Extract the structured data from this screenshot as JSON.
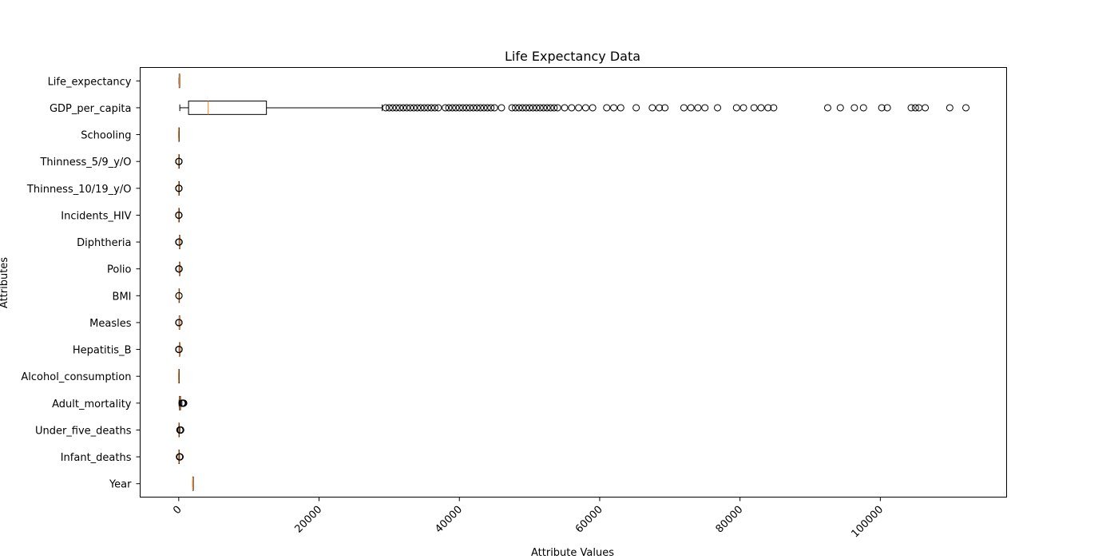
{
  "chart_data": {
    "type": "boxplot",
    "orientation": "horizontal",
    "title": "Life Expectancy Data",
    "xlabel": "Attribute Values",
    "ylabel": "Attributes",
    "xlim": [
      -5500,
      118000
    ],
    "xticks": [
      0,
      20000,
      40000,
      60000,
      80000,
      100000
    ],
    "xtick_labels": [
      "0",
      "20000",
      "40000",
      "60000",
      "80000",
      "100000"
    ],
    "xtick_rotation": 45,
    "grid": false,
    "legend": "none",
    "colors": {
      "box": "#000000",
      "median": "#ff7f0e",
      "flier": "#000000"
    },
    "categories": [
      "Year",
      "Infant_deaths",
      "Under_five_deaths",
      "Adult_mortality",
      "Alcohol_consumption",
      "Hepatitis_B",
      "Measles",
      "BMI",
      "Polio",
      "Diphtheria",
      "Incidents_HIV",
      "Thinness_10/19_y/O",
      "Thinness_5/9_y/O",
      "Schooling",
      "GDP_per_capita",
      "Life_expectancy"
    ],
    "boxes": [
      {
        "name": "Year",
        "whislo": 2000,
        "q1": 2004,
        "med": 2007,
        "q3": 2011,
        "whishi": 2015,
        "fliers": []
      },
      {
        "name": "Infant_deaths",
        "whislo": 2,
        "q1": 8,
        "med": 19,
        "q3": 47,
        "whishi": 105,
        "fliers": [
          110,
          120,
          130,
          140,
          150,
          160,
          170,
          180
        ]
      },
      {
        "name": "Under_five_deaths",
        "whislo": 3,
        "q1": 10,
        "med": 23,
        "q3": 66,
        "whishi": 150,
        "fliers": [
          160,
          180,
          200,
          220,
          240,
          260,
          280
        ]
      },
      {
        "name": "Adult_mortality",
        "whislo": 50,
        "q1": 106,
        "med": 163,
        "q3": 246,
        "whishi": 455,
        "fliers": [
          470,
          500,
          530,
          560,
          590,
          620,
          650,
          680,
          710
        ]
      },
      {
        "name": "Alcohol_consumption",
        "whislo": 0,
        "q1": 1,
        "med": 4,
        "q3": 8,
        "whishi": 17,
        "fliers": []
      },
      {
        "name": "Hepatitis_B",
        "whislo": 50,
        "q1": 78,
        "med": 89,
        "q3": 96,
        "whishi": 99,
        "fliers": [
          12,
          20,
          28,
          36,
          44
        ]
      },
      {
        "name": "Measles",
        "whislo": 50,
        "q1": 64,
        "med": 83,
        "q3": 93,
        "whishi": 99,
        "fliers": [
          10,
          20,
          30,
          40
        ]
      },
      {
        "name": "BMI",
        "whislo": 20,
        "q1": 23,
        "med": 25,
        "q3": 26,
        "whishi": 30,
        "fliers": [
          31,
          32
        ]
      },
      {
        "name": "Polio",
        "whislo": 55,
        "q1": 81,
        "med": 93,
        "q3": 97,
        "whishi": 99,
        "fliers": [
          10,
          20,
          30,
          40,
          50
        ]
      },
      {
        "name": "Diphtheria",
        "whislo": 55,
        "q1": 81,
        "med": 93,
        "q3": 97,
        "whishi": 99,
        "fliers": [
          10,
          20,
          30,
          40,
          50
        ]
      },
      {
        "name": "Incidents_HIV",
        "whislo": 0,
        "q1": 0,
        "med": 0,
        "q3": 1,
        "whishi": 1,
        "fliers": [
          3,
          8,
          15,
          22,
          21
        ]
      },
      {
        "name": "Thinness_10/19_y/O",
        "whislo": 0,
        "q1": 2,
        "med": 3,
        "q3": 7,
        "whishi": 15,
        "fliers": [
          16,
          18,
          20,
          24,
          27
        ]
      },
      {
        "name": "Thinness_5/9_y/O",
        "whislo": 0,
        "q1": 2,
        "med": 3,
        "q3": 7,
        "whishi": 15,
        "fliers": [
          16,
          18,
          20,
          24,
          28
        ]
      },
      {
        "name": "Schooling",
        "whislo": 1,
        "q1": 5,
        "med": 8,
        "q3": 10,
        "whishi": 14,
        "fliers": []
      },
      {
        "name": "GDP_per_capita",
        "whislo": 150,
        "q1": 1400,
        "med": 4200,
        "q3": 12500,
        "whishi": 29000,
        "fliers": [
          29500,
          30000,
          30500,
          31000,
          31500,
          32000,
          32500,
          33000,
          33500,
          34000,
          34500,
          35000,
          35500,
          36000,
          36500,
          37000,
          38000,
          38500,
          39000,
          39500,
          40000,
          40500,
          41000,
          41500,
          42000,
          42500,
          43000,
          43500,
          44000,
          44500,
          45000,
          46000,
          47500,
          48000,
          48500,
          49000,
          49500,
          50000,
          50500,
          51000,
          51500,
          52000,
          52500,
          53000,
          53500,
          54000,
          55000,
          56000,
          57000,
          58000,
          59000,
          61000,
          62000,
          63000,
          65200,
          67500,
          68500,
          69300,
          72000,
          73000,
          74000,
          75000,
          76800,
          79500,
          80500,
          82000,
          83000,
          84000,
          84800,
          92500,
          94300,
          96300,
          97600,
          100200,
          101000,
          104400,
          105000,
          105500,
          106400,
          109900,
          112200
        ]
      },
      {
        "name": "Life_expectancy",
        "whislo": 45,
        "q1": 62,
        "med": 71,
        "q3": 75,
        "whishi": 84,
        "fliers": []
      }
    ]
  }
}
